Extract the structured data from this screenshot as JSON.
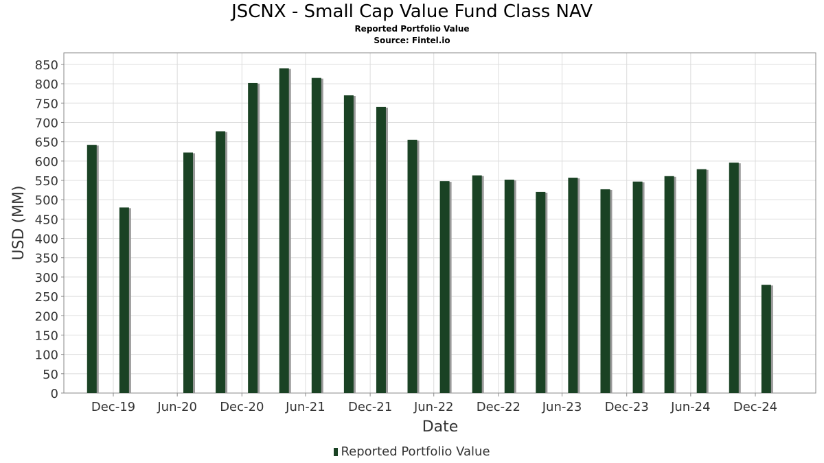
{
  "chart_data": {
    "type": "bar",
    "title": "JSCNX - Small Cap Value Fund Class NAV",
    "subtitle": "Reported Portfolio Value",
    "source": "Source: Fintel.io",
    "xlabel": "Date",
    "ylabel": "USD (MM)",
    "ylim": [
      0,
      880
    ],
    "yticks": [
      0,
      50,
      100,
      150,
      200,
      250,
      300,
      350,
      400,
      450,
      500,
      550,
      600,
      650,
      700,
      750,
      800,
      850
    ],
    "xtick_labels": [
      "Dec-19",
      "Jun-20",
      "Dec-20",
      "Jun-21",
      "Dec-21",
      "Jun-22",
      "Dec-22",
      "Jun-23",
      "Dec-23",
      "Jun-24",
      "Dec-24"
    ],
    "grid": true,
    "legend_position": "bottom-center",
    "bar_color": "#1a4224",
    "series": [
      {
        "name": "Reported Portfolio Value",
        "points": [
          {
            "x": "2019-10-31",
            "value": 642
          },
          {
            "x": "2020-01-31",
            "value": 480
          },
          {
            "x": "2020-07-31",
            "value": 622
          },
          {
            "x": "2020-10-31",
            "value": 677
          },
          {
            "x": "2021-01-31",
            "value": 802
          },
          {
            "x": "2021-04-30",
            "value": 840
          },
          {
            "x": "2021-07-31",
            "value": 815
          },
          {
            "x": "2021-10-31",
            "value": 770
          },
          {
            "x": "2022-01-31",
            "value": 740
          },
          {
            "x": "2022-04-30",
            "value": 655
          },
          {
            "x": "2022-07-31",
            "value": 548
          },
          {
            "x": "2022-10-31",
            "value": 563
          },
          {
            "x": "2023-01-31",
            "value": 552
          },
          {
            "x": "2023-04-30",
            "value": 520
          },
          {
            "x": "2023-07-31",
            "value": 557
          },
          {
            "x": "2023-10-31",
            "value": 527
          },
          {
            "x": "2024-01-31",
            "value": 547
          },
          {
            "x": "2024-04-30",
            "value": 561
          },
          {
            "x": "2024-07-31",
            "value": 579
          },
          {
            "x": "2024-10-31",
            "value": 596
          },
          {
            "x": "2025-01-31",
            "value": 280
          }
        ]
      }
    ]
  }
}
